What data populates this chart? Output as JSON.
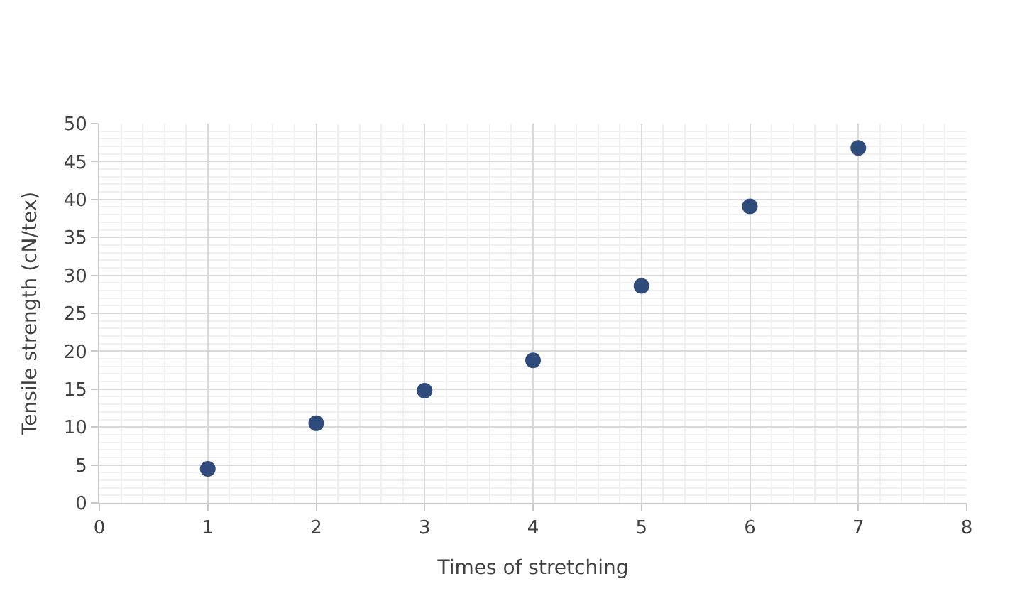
{
  "chart_data": {
    "type": "scatter",
    "xlabel": "Times of stretching",
    "ylabel": "Tensile strength (cN/tex)",
    "x": [
      1,
      2,
      3,
      4,
      5,
      6,
      7
    ],
    "series": [
      {
        "color": "#2f4b7c",
        "values": [
          4.5,
          10.5,
          14.8,
          18.8,
          28.6,
          39.1,
          46.8
        ]
      }
    ],
    "xlim": [
      0,
      8
    ],
    "xticks": [
      0,
      1,
      2,
      3,
      4,
      5,
      6,
      7,
      8
    ],
    "ylim": [
      0,
      50
    ],
    "yticks": [
      0,
      5,
      10,
      15,
      20,
      25,
      30,
      35,
      40,
      45,
      50
    ],
    "grid": true,
    "marker": "circle"
  }
}
